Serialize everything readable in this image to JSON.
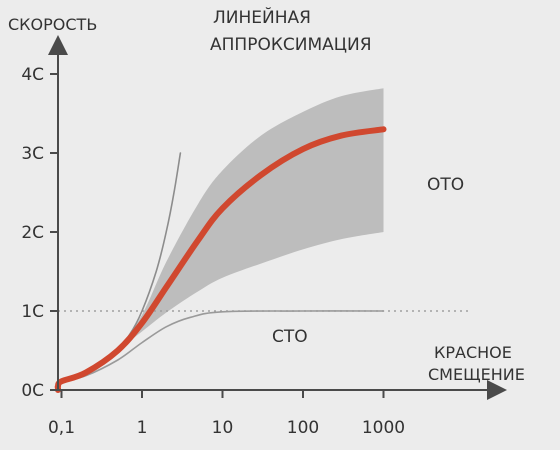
{
  "chart_data": {
    "type": "line",
    "ylabel": "СКОРОСТЬ",
    "xlabel_lines": [
      "КРАСНОЕ",
      "СМЕЩЕНИЕ"
    ],
    "x_scale": "log",
    "x_ticks": [
      {
        "value": 0.1,
        "label": "0,1"
      },
      {
        "value": 1,
        "label": "1"
      },
      {
        "value": 10,
        "label": "10"
      },
      {
        "value": 100,
        "label": "100"
      },
      {
        "value": 1000,
        "label": "1000"
      }
    ],
    "y_ticks": [
      {
        "value": 0,
        "label": "0C"
      },
      {
        "value": 1,
        "label": "1C"
      },
      {
        "value": 2,
        "label": "2C"
      },
      {
        "value": 3,
        "label": "3C"
      },
      {
        "value": 4,
        "label": "4C"
      }
    ],
    "reference_line": {
      "y": 1,
      "style": "dotted"
    },
    "series": [
      {
        "name": "ЛИНЕЙНАЯ АППРОКСИМАЦИЯ",
        "label_lines": [
          "ЛИНЕЙНАЯ",
          "АППРОКСИМАЦИЯ"
        ],
        "color": "#8c8c8c",
        "x": [
          0.005,
          0.02,
          0.05,
          0.1,
          0.2,
          0.4,
          0.7,
          1.0,
          1.5,
          2.0,
          2.5,
          3.0
        ],
        "y": [
          0.0,
          0.02,
          0.05,
          0.1,
          0.2,
          0.4,
          0.7,
          1.0,
          1.5,
          2.0,
          2.5,
          3.0
        ]
      },
      {
        "name": "СТО",
        "color": "#9a9a9a",
        "x": [
          0.005,
          0.02,
          0.05,
          0.1,
          0.2,
          0.5,
          1,
          2,
          4,
          10,
          100,
          1000
        ],
        "y": [
          0.0,
          0.02,
          0.05,
          0.1,
          0.18,
          0.38,
          0.6,
          0.8,
          0.92,
          0.99,
          1.0,
          1.0
        ]
      },
      {
        "name": "ОТО",
        "color": "#d0482f",
        "x": [
          0.005,
          0.02,
          0.05,
          0.1,
          0.2,
          0.5,
          1,
          2,
          5,
          10,
          30,
          100,
          300,
          1000
        ],
        "y": [
          0.0,
          0.02,
          0.05,
          0.11,
          0.22,
          0.5,
          0.85,
          1.3,
          1.9,
          2.3,
          2.72,
          3.05,
          3.22,
          3.3
        ]
      }
    ],
    "band": {
      "name": "ОТО",
      "color": "#b8b8b8",
      "x": [
        0.5,
        1,
        2,
        5,
        10,
        30,
        100,
        300,
        1000
      ],
      "lower": [
        0.5,
        0.74,
        0.98,
        1.25,
        1.42,
        1.6,
        1.78,
        1.91,
        2.0
      ],
      "upper": [
        0.5,
        0.95,
        1.62,
        2.36,
        2.78,
        3.22,
        3.52,
        3.72,
        3.82
      ]
    }
  }
}
